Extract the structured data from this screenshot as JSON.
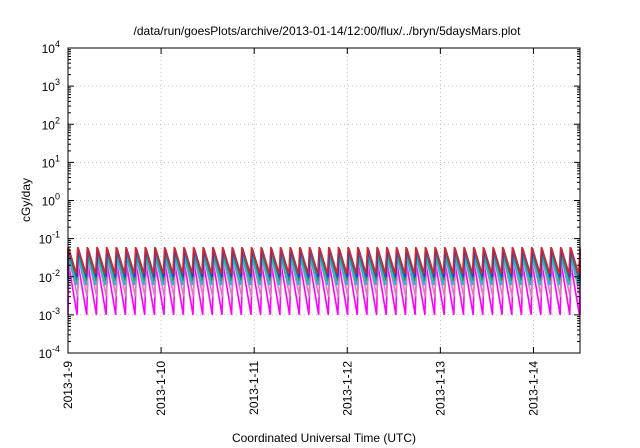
{
  "chart_data": {
    "type": "line",
    "title": "/data/run/goesPlots/archive/2013-01-14/12:00/flux/../bryn/5daysMars.plot",
    "xlabel": "Coordinated Universal Time (UTC)",
    "ylabel": "cGy/day",
    "yscale": "log",
    "ylim": [
      0.0001,
      10000
    ],
    "xlim": [
      "2013-01-09 00:00",
      "2013-01-14 12:00"
    ],
    "grid": true,
    "legend": "none",
    "xticks": [
      "2013-1-9",
      "2013-1-10",
      "2013-1-11",
      "2013-1-12",
      "2013-1-13",
      "2013-1-14"
    ],
    "yticks": [
      {
        "base": "10",
        "exp": "-4"
      },
      {
        "base": "10",
        "exp": "-3"
      },
      {
        "base": "10",
        "exp": "-2"
      },
      {
        "base": "10",
        "exp": "-1"
      },
      {
        "base": "10",
        "exp": "0"
      },
      {
        "base": "10",
        "exp": "1"
      },
      {
        "base": "10",
        "exp": "2"
      },
      {
        "base": "10",
        "exp": "3"
      },
      {
        "base": "10",
        "exp": "4"
      }
    ],
    "sawtooth_cycles_per_day": 9.7,
    "series": [
      {
        "color": "#d62728",
        "peak": 0.06,
        "trough": 0.012
      },
      {
        "color": "#2ca02c",
        "peak": 0.045,
        "trough": 0.008
      },
      {
        "color": "#1f3fd6",
        "peak": 0.055,
        "trough": 0.01
      },
      {
        "color": "#e377c2",
        "peak": 0.03,
        "trough": 0.003
      },
      {
        "color": "#17becf",
        "peak": 0.035,
        "trough": 0.006
      },
      {
        "color": "#1f77b4",
        "peak": 0.05,
        "trough": 0.009
      },
      {
        "color": "#ff00ff",
        "peak": 0.02,
        "trough": 0.001
      }
    ]
  }
}
